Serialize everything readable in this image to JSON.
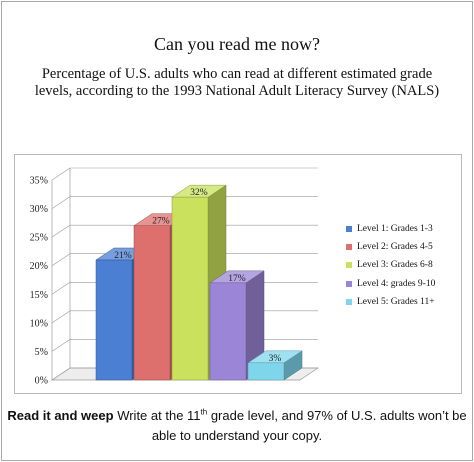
{
  "title": "Can you read me now?",
  "subtitle": "Percentage of U.S. adults who can read at different estimated grade levels, according to the 1993 National Adult Literacy Survey (NALS)",
  "footer": {
    "lead": "Read it and weep",
    "text_before": "Write at the 11",
    "superscript": "th",
    "text_after": " grade level, and 97% of U.S. adults won’t be able to understand your copy."
  },
  "chart_data": {
    "type": "bar",
    "style": "3d",
    "categories": [
      "Level 1: Grades 1-3",
      "Level 2: Grades 4-5",
      "Level 3: Grades 6-8",
      "Level 4: grades 9-10",
      "Level 5: Grades 11+"
    ],
    "values": [
      21,
      27,
      32,
      17,
      3
    ],
    "data_labels": [
      "21%",
      "27%",
      "32%",
      "17%",
      "3%"
    ],
    "colors": [
      "#4a7fd4",
      "#dd6f6c",
      "#c9e15c",
      "#9b85d6",
      "#7fd6ec"
    ],
    "ylim": [
      0,
      35
    ],
    "yticks": [
      "0%",
      "5%",
      "10%",
      "15%",
      "20%",
      "25%",
      "30%",
      "35%"
    ],
    "grid": true,
    "legend_position": "right"
  }
}
